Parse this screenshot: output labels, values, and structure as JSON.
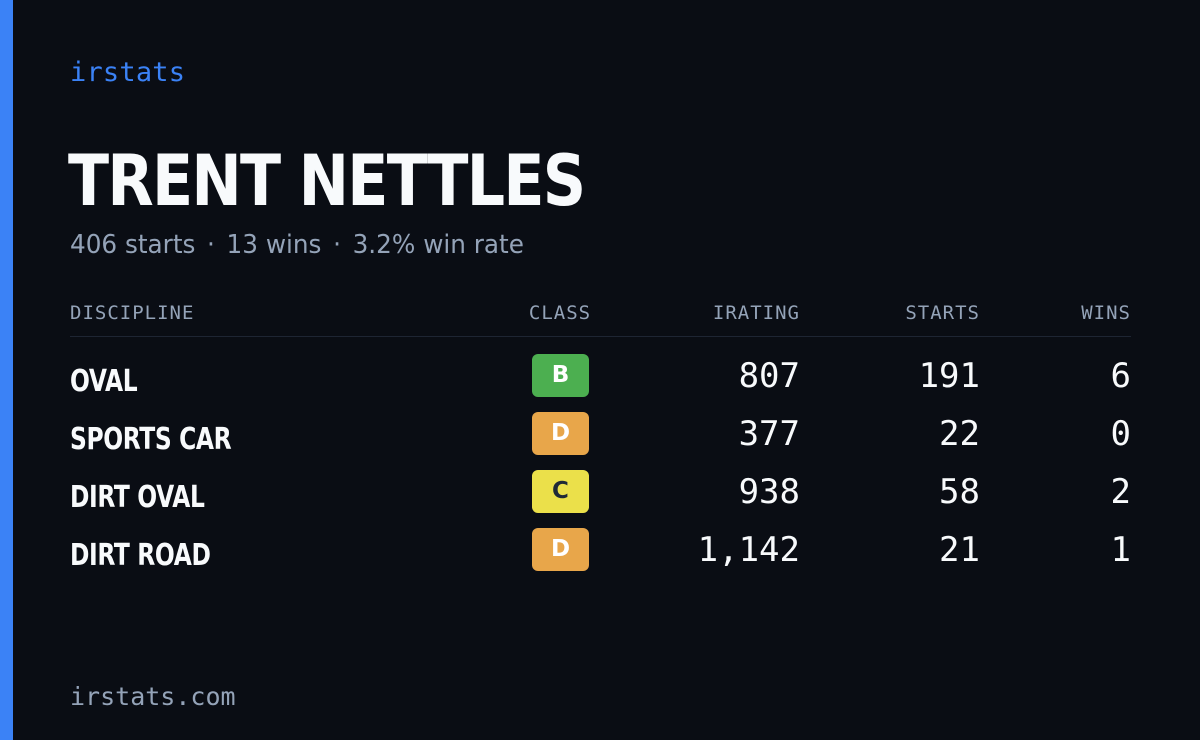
{
  "brand": "irstats",
  "driver": {
    "name": "TRENT NETTLES",
    "starts_text": "406 starts",
    "wins_text": "13 wins",
    "win_rate_text": "3.2% win rate",
    "separator": "·"
  },
  "table": {
    "headers": {
      "discipline": "DISCIPLINE",
      "class": "CLASS",
      "irating": "IRATING",
      "starts": "STARTS",
      "wins": "WINS"
    },
    "rows": [
      {
        "discipline": "OVAL",
        "class": "B",
        "class_color": "#4caf50",
        "irating": "807",
        "starts": "191",
        "wins": "6"
      },
      {
        "discipline": "SPORTS CAR",
        "class": "D",
        "class_color": "#e8a64a",
        "irating": "377",
        "starts": "22",
        "wins": "0"
      },
      {
        "discipline": "DIRT OVAL",
        "class": "C",
        "class_color": "#ebe04a",
        "irating": "938",
        "starts": "58",
        "wins": "2"
      },
      {
        "discipline": "DIRT ROAD",
        "class": "D",
        "class_color": "#e8a64a",
        "irating": "1,142",
        "starts": "21",
        "wins": "1"
      }
    ]
  },
  "footer": "irstats.com",
  "colors": {
    "accent": "#3b82f6",
    "background": "#0a0d14",
    "muted": "#94a3b8",
    "text": "#f8fafc"
  }
}
